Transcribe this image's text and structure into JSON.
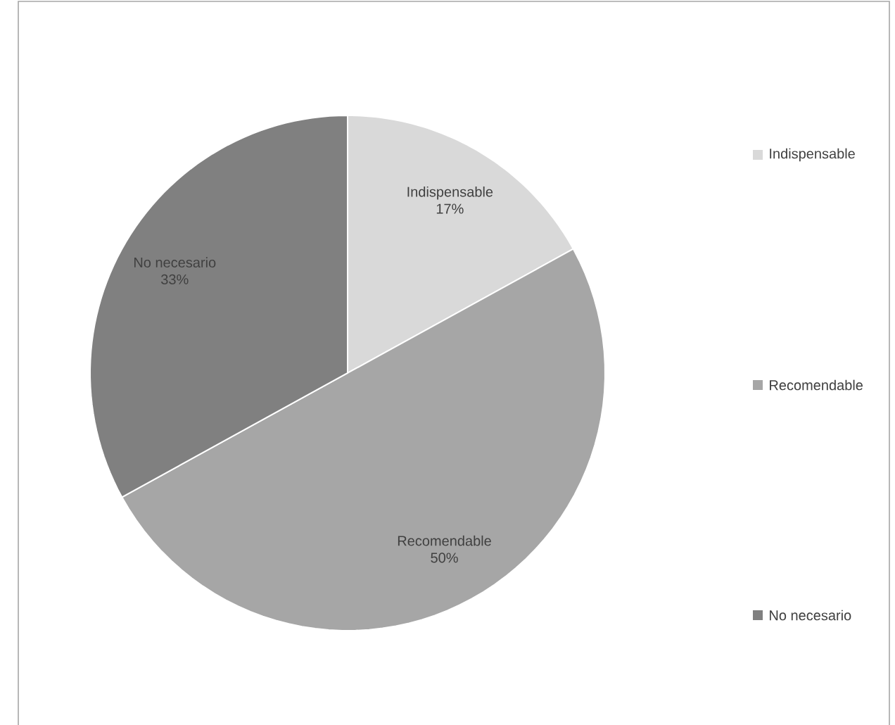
{
  "chart_data": {
    "type": "pie",
    "categories": [
      "Indispensable",
      "Recomendable",
      "No necesario"
    ],
    "values": [
      17,
      50,
      33
    ],
    "value_labels": [
      "17%",
      "50%",
      "33%"
    ],
    "colors": [
      "#d9d9d9",
      "#a6a6a6",
      "#808080"
    ],
    "legend": "right"
  }
}
